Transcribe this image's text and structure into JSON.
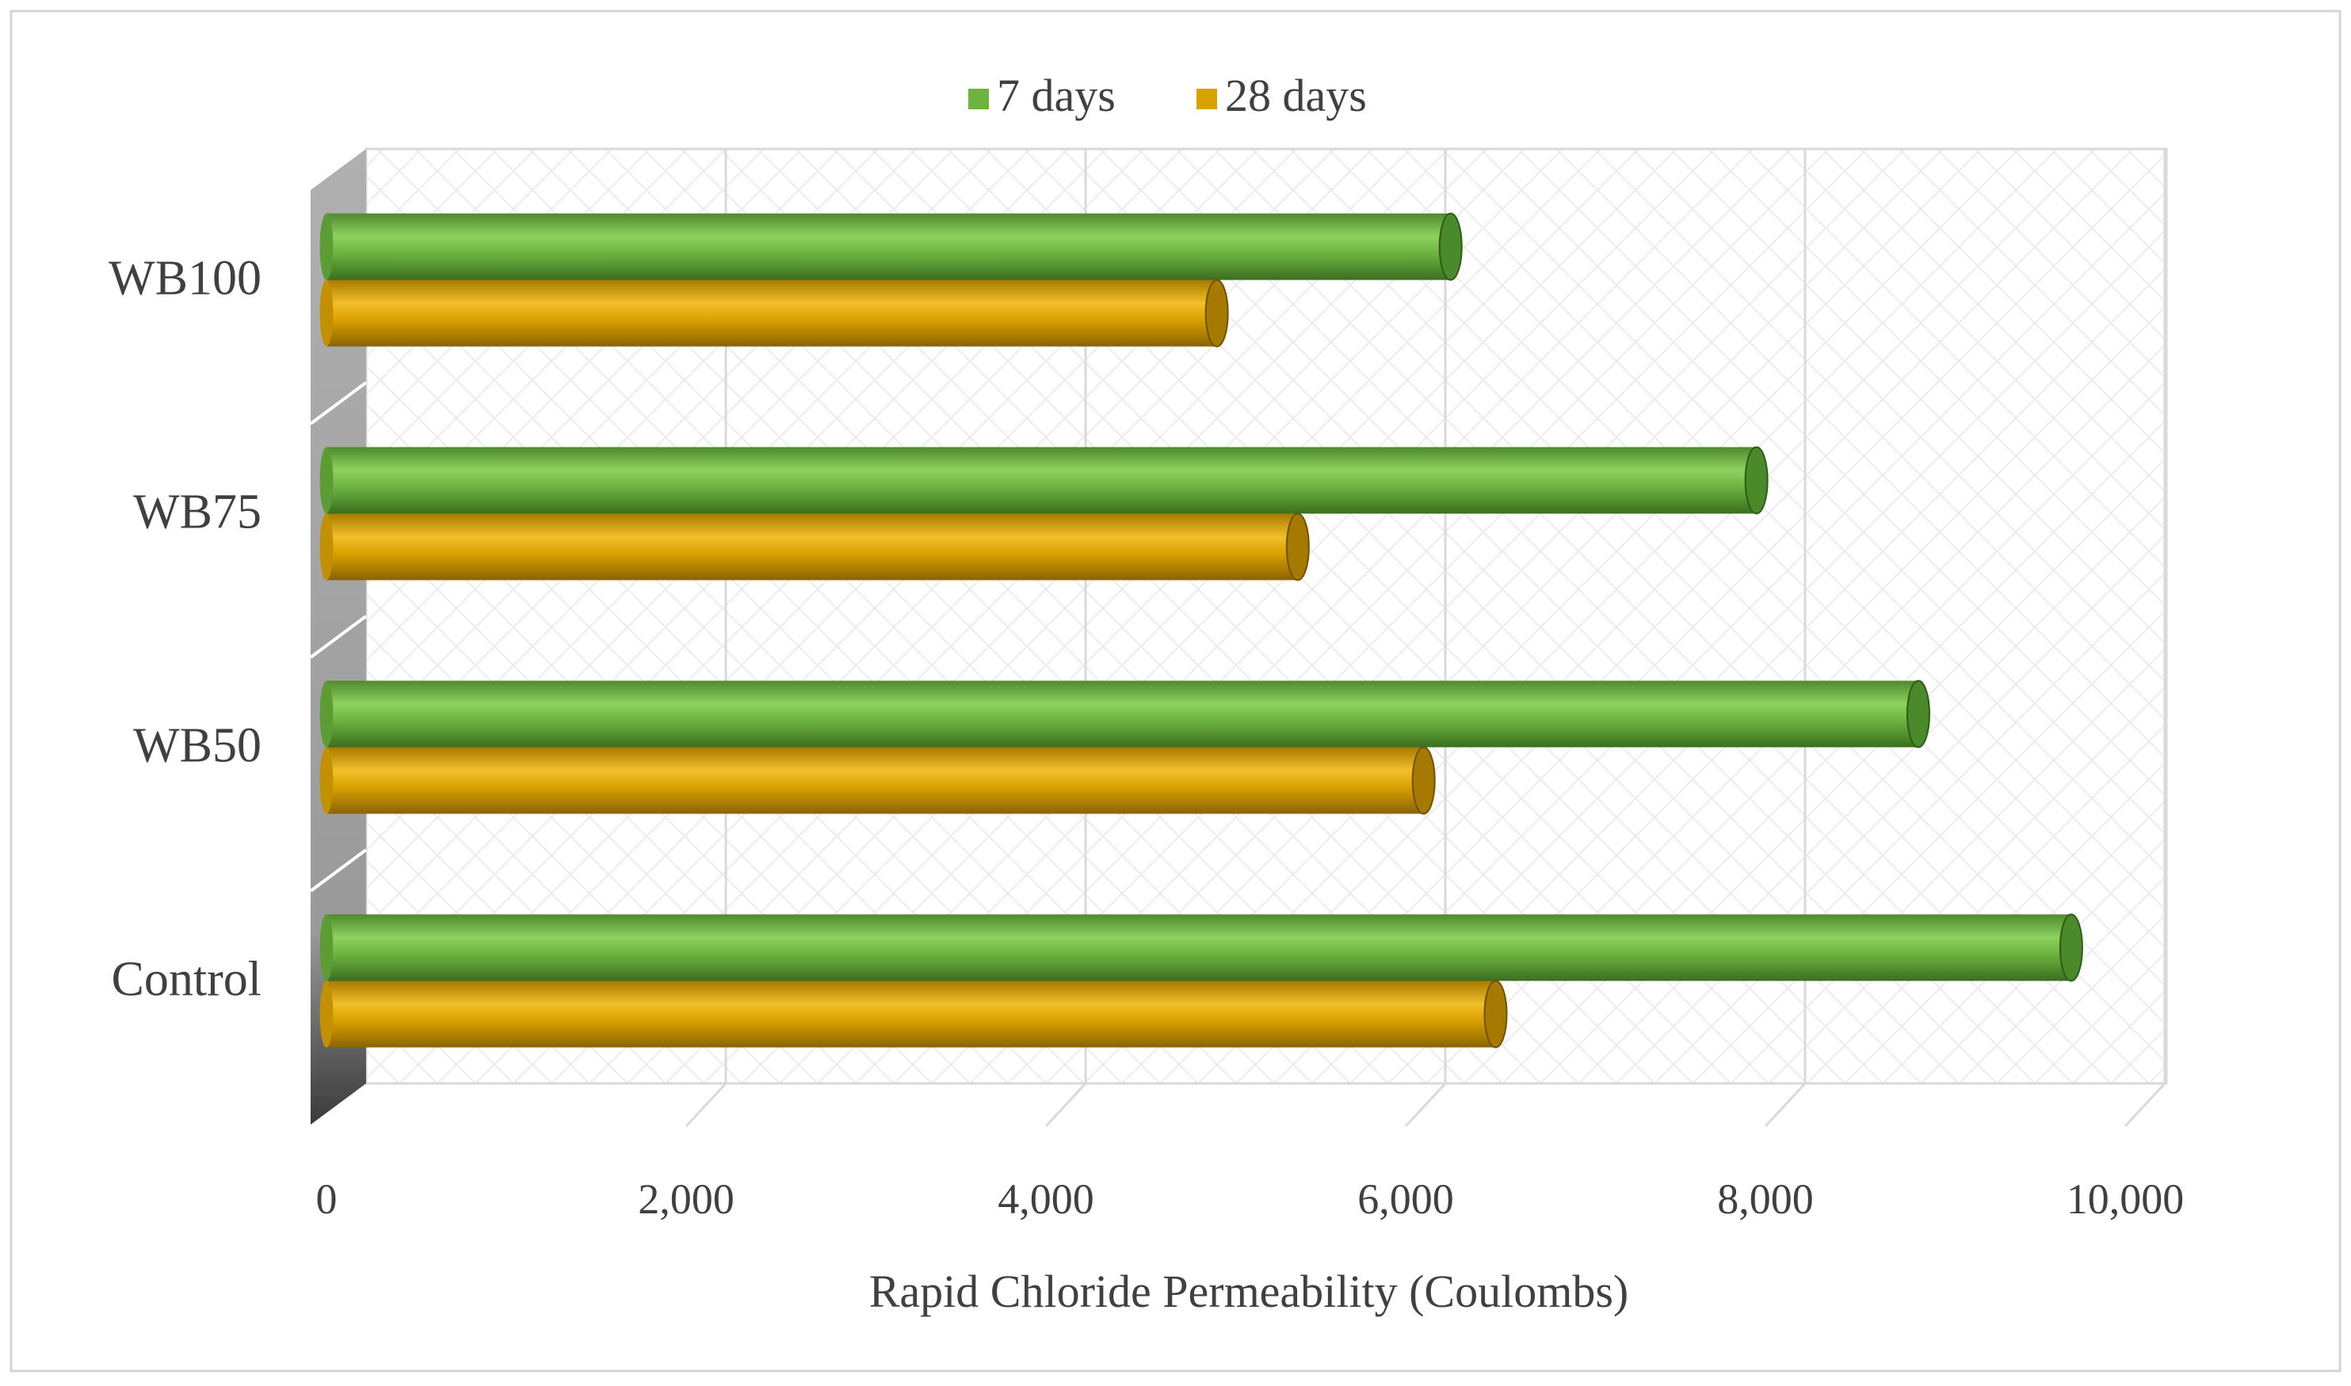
{
  "chart_data": {
    "type": "bar",
    "orientation": "horizontal",
    "style": "3d-cylinder",
    "title": "",
    "categories": [
      "Control",
      "WB50",
      "WB75",
      "WB100"
    ],
    "series": [
      {
        "name": "7 days",
        "color": "#6CB33F",
        "values": [
          9700,
          8850,
          7950,
          6250
        ]
      },
      {
        "name": "28 days",
        "color": "#D9A100",
        "values": [
          6500,
          6100,
          5400,
          4950
        ]
      }
    ],
    "xlabel": "Rapid Chloride Permeability (Coulombs)",
    "ylabel": "",
    "xlim": [
      0,
      10000
    ],
    "xticks": [
      "0",
      "2,000",
      "4,000",
      "6,000",
      "8,000",
      "10,000"
    ],
    "grid": true,
    "legend_position": "top"
  }
}
